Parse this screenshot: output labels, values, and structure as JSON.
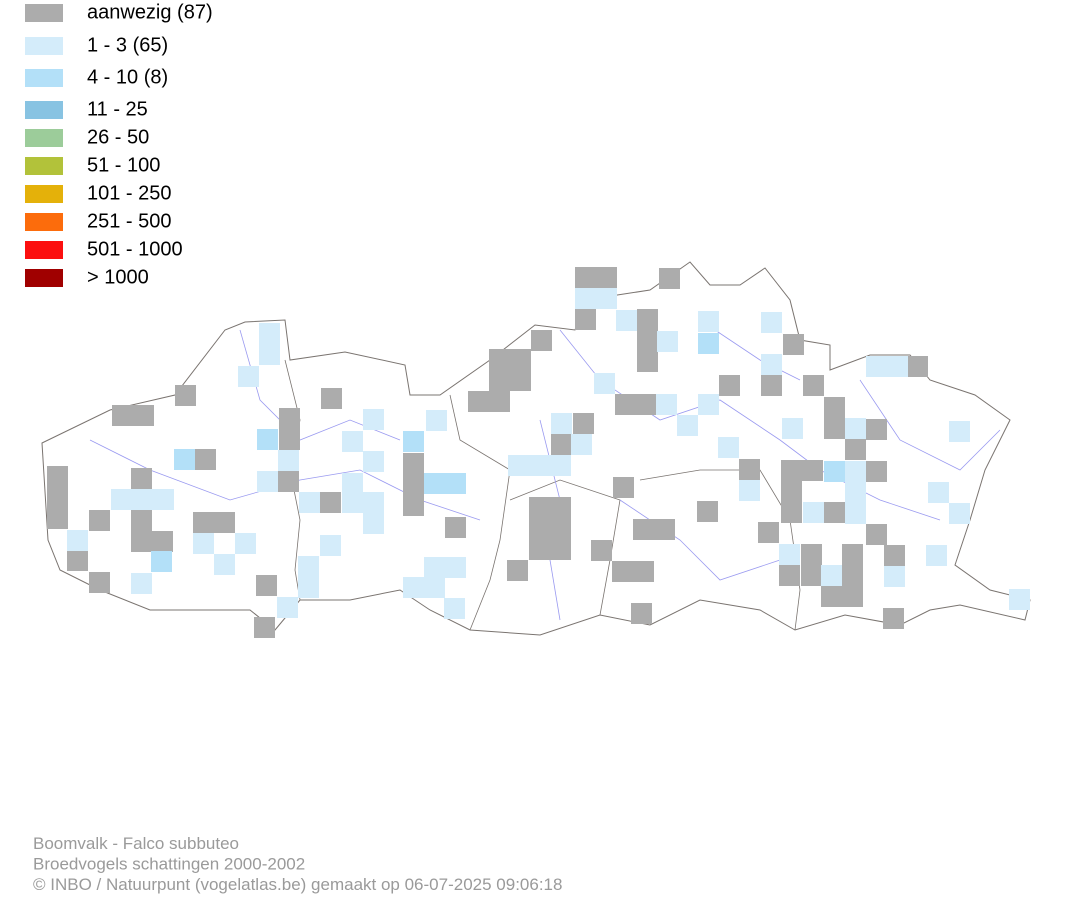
{
  "legend": [
    {
      "label": "aanwezig (87)",
      "color": "#acacac"
    },
    {
      "label": "1 - 3 (65)",
      "color": "#d4ecfa"
    },
    {
      "label": "4 - 10 (8)",
      "color": "#b3e0f8"
    },
    {
      "label": "11 - 25",
      "color": "#88c3e2"
    },
    {
      "label": "26 - 50",
      "color": "#9ccc9a"
    },
    {
      "label": "51 - 100",
      "color": "#b2c23a"
    },
    {
      "label": "101 - 250",
      "color": "#e4b10a"
    },
    {
      "label": "251 - 500",
      "color": "#fc6c0c"
    },
    {
      "label": "501 - 1000",
      "color": "#fc0f0f"
    },
    {
      "label": "> 1000",
      "color": "#a00000"
    }
  ],
  "footer": [
    "Boomvalk - Falco subbuteo",
    "Broedvogels schattingen 2000-2002",
    "© INBO / Natuurpunt (vogelatlas.be) gemaakt op 06-07-2025 09:06:18"
  ]
}
